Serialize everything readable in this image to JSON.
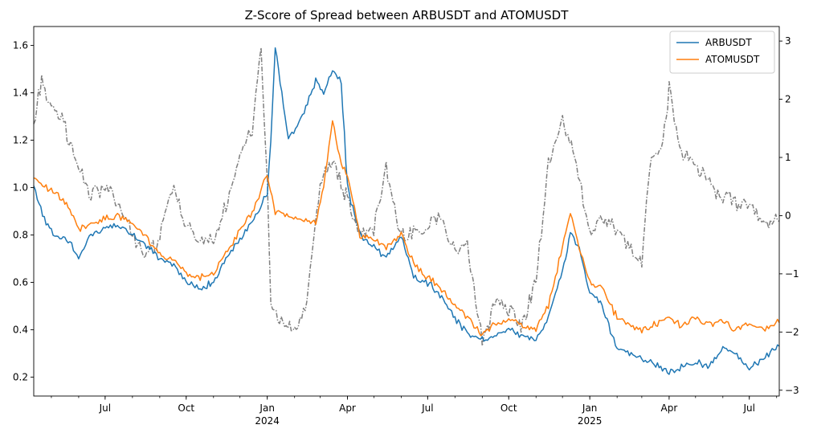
{
  "chart_data": {
    "type": "line",
    "title": "Z-Score of Spread between ARBUSDT and ATOMUSDT",
    "xlabel": "",
    "ylabel": "",
    "y2label": "",
    "x_range": [
      "2023-04-11",
      "2025-08-04"
    ],
    "ylim": [
      0.12,
      1.68
    ],
    "y2lim": [
      -3.1,
      3.25
    ],
    "grid": false,
    "legend_position": "top-right",
    "x_ticks": [
      {
        "date": "2023-07-01",
        "label": "Jul",
        "sub": ""
      },
      {
        "date": "2023-10-01",
        "label": "Oct",
        "sub": ""
      },
      {
        "date": "2024-01-01",
        "label": "Jan",
        "sub": "2024"
      },
      {
        "date": "2024-04-01",
        "label": "Apr",
        "sub": ""
      },
      {
        "date": "2024-07-01",
        "label": "Jul",
        "sub": ""
      },
      {
        "date": "2024-10-01",
        "label": "Oct",
        "sub": ""
      },
      {
        "date": "2025-01-01",
        "label": "Jan",
        "sub": "2025"
      },
      {
        "date": "2025-04-01",
        "label": "Apr",
        "sub": ""
      },
      {
        "date": "2025-07-01",
        "label": "Jul",
        "sub": ""
      }
    ],
    "y_ticks": [
      0.2,
      0.4,
      0.6,
      0.8,
      1.0,
      1.2,
      1.4,
      1.6
    ],
    "y_tick_labels": [
      "0.2",
      "0.4",
      "0.6",
      "0.8",
      "1.0",
      "1.2",
      "1.4",
      "1.6"
    ],
    "y2_ticks": [
      -3,
      -2,
      -1,
      0,
      1,
      2,
      3
    ],
    "y2_tick_labels": [
      "−3",
      "−2",
      "−1",
      "0",
      "1",
      "2",
      "3"
    ],
    "series": [
      {
        "name": "ARBUSDT",
        "color": "#1f77b4",
        "axis": "left",
        "style": "solid",
        "x": [
          "2023-04-11",
          "2023-04-25",
          "2023-05-05",
          "2023-05-20",
          "2023-06-01",
          "2023-06-15",
          "2023-07-01",
          "2023-07-15",
          "2023-08-01",
          "2023-08-15",
          "2023-09-01",
          "2023-09-15",
          "2023-10-01",
          "2023-10-15",
          "2023-11-01",
          "2023-11-15",
          "2023-12-01",
          "2023-12-15",
          "2024-01-01",
          "2024-01-05",
          "2024-01-10",
          "2024-01-25",
          "2024-02-10",
          "2024-02-25",
          "2024-03-05",
          "2024-03-15",
          "2024-03-25",
          "2024-04-01",
          "2024-04-15",
          "2024-05-01",
          "2024-05-15",
          "2024-06-01",
          "2024-06-15",
          "2024-07-01",
          "2024-07-15",
          "2024-08-01",
          "2024-08-15",
          "2024-09-01",
          "2024-09-15",
          "2024-10-01",
          "2024-10-15",
          "2024-11-01",
          "2024-11-15",
          "2024-12-01",
          "2024-12-10",
          "2024-12-20",
          "2025-01-01",
          "2025-01-15",
          "2025-02-01",
          "2025-02-15",
          "2025-03-01",
          "2025-03-15",
          "2025-04-01",
          "2025-04-15",
          "2025-05-01",
          "2025-05-15",
          "2025-06-01",
          "2025-06-15",
          "2025-07-01",
          "2025-07-15",
          "2025-08-04"
        ],
        "values": [
          1.0,
          0.85,
          0.8,
          0.78,
          0.7,
          0.8,
          0.83,
          0.85,
          0.8,
          0.76,
          0.7,
          0.68,
          0.6,
          0.57,
          0.6,
          0.7,
          0.78,
          0.85,
          0.98,
          1.2,
          1.6,
          1.2,
          1.3,
          1.45,
          1.4,
          1.5,
          1.45,
          1.0,
          0.8,
          0.75,
          0.7,
          0.8,
          0.62,
          0.6,
          0.55,
          0.45,
          0.38,
          0.36,
          0.38,
          0.4,
          0.38,
          0.36,
          0.45,
          0.65,
          0.8,
          0.75,
          0.55,
          0.5,
          0.32,
          0.3,
          0.28,
          0.26,
          0.22,
          0.24,
          0.26,
          0.25,
          0.32,
          0.3,
          0.23,
          0.28,
          0.33
        ]
      },
      {
        "name": "ATOMUSDT",
        "color": "#ff7f0e",
        "axis": "left",
        "style": "solid",
        "x": [
          "2023-04-11",
          "2023-04-25",
          "2023-05-05",
          "2023-05-20",
          "2023-06-01",
          "2023-06-15",
          "2023-07-01",
          "2023-07-15",
          "2023-08-01",
          "2023-08-15",
          "2023-09-01",
          "2023-09-15",
          "2023-10-01",
          "2023-10-15",
          "2023-11-01",
          "2023-11-15",
          "2023-12-01",
          "2023-12-15",
          "2024-01-01",
          "2024-01-10",
          "2024-01-25",
          "2024-02-10",
          "2024-02-25",
          "2024-03-05",
          "2024-03-15",
          "2024-03-25",
          "2024-04-01",
          "2024-04-15",
          "2024-05-01",
          "2024-05-15",
          "2024-06-01",
          "2024-06-15",
          "2024-07-01",
          "2024-07-15",
          "2024-08-01",
          "2024-08-15",
          "2024-09-01",
          "2024-09-15",
          "2024-10-01",
          "2024-10-15",
          "2024-11-01",
          "2024-11-15",
          "2024-12-01",
          "2024-12-10",
          "2024-12-20",
          "2025-01-01",
          "2025-01-15",
          "2025-02-01",
          "2025-02-15",
          "2025-03-01",
          "2025-03-15",
          "2025-04-01",
          "2025-04-15",
          "2025-05-01",
          "2025-05-15",
          "2025-06-01",
          "2025-06-15",
          "2025-07-01",
          "2025-07-15",
          "2025-08-04"
        ],
        "values": [
          1.05,
          1.0,
          0.98,
          0.92,
          0.82,
          0.85,
          0.87,
          0.88,
          0.85,
          0.8,
          0.72,
          0.7,
          0.64,
          0.62,
          0.64,
          0.72,
          0.82,
          0.9,
          1.05,
          0.9,
          0.88,
          0.86,
          0.85,
          1.0,
          1.28,
          1.1,
          1.05,
          0.8,
          0.78,
          0.75,
          0.8,
          0.68,
          0.62,
          0.58,
          0.5,
          0.45,
          0.38,
          0.42,
          0.45,
          0.42,
          0.4,
          0.5,
          0.75,
          0.9,
          0.75,
          0.6,
          0.58,
          0.45,
          0.42,
          0.4,
          0.42,
          0.45,
          0.42,
          0.45,
          0.42,
          0.44,
          0.4,
          0.42,
          0.4,
          0.43
        ]
      },
      {
        "name": "",
        "color": "#808080",
        "axis": "right",
        "style": "dashdot",
        "x": [
          "2023-04-11",
          "2023-04-20",
          "2023-05-01",
          "2023-05-15",
          "2023-06-01",
          "2023-06-15",
          "2023-07-01",
          "2023-07-15",
          "2023-08-01",
          "2023-08-15",
          "2023-09-01",
          "2023-09-15",
          "2023-10-01",
          "2023-10-15",
          "2023-11-01",
          "2023-11-15",
          "2023-12-01",
          "2023-12-15",
          "2023-12-25",
          "2024-01-01",
          "2024-01-05",
          "2024-01-15",
          "2024-02-01",
          "2024-02-15",
          "2024-03-01",
          "2024-03-15",
          "2024-03-25",
          "2024-04-01",
          "2024-04-15",
          "2024-05-01",
          "2024-05-15",
          "2024-06-01",
          "2024-06-15",
          "2024-07-01",
          "2024-07-15",
          "2024-08-01",
          "2024-08-15",
          "2024-09-01",
          "2024-09-15",
          "2024-10-01",
          "2024-10-15",
          "2024-11-01",
          "2024-11-15",
          "2024-12-01",
          "2024-12-15",
          "2025-01-01",
          "2025-01-15",
          "2025-02-01",
          "2025-02-15",
          "2025-03-01",
          "2025-03-10",
          "2025-03-25",
          "2025-04-01",
          "2025-04-15",
          "2025-05-01",
          "2025-05-15",
          "2025-06-01",
          "2025-06-15",
          "2025-07-01",
          "2025-07-15",
          "2025-08-04"
        ],
        "values": [
          1.5,
          2.4,
          1.8,
          1.6,
          0.8,
          0.3,
          0.5,
          0.2,
          -0.3,
          -0.7,
          -0.4,
          0.5,
          -0.2,
          -0.4,
          -0.5,
          0.2,
          1.0,
          1.5,
          2.9,
          0.5,
          -1.5,
          -1.8,
          -2.0,
          -1.5,
          0.5,
          1.0,
          0.5,
          0.3,
          -0.3,
          -0.2,
          0.8,
          -0.4,
          -0.3,
          -0.2,
          0.0,
          -0.6,
          -0.5,
          -2.2,
          -1.5,
          -1.6,
          -1.9,
          -1.2,
          0.9,
          1.6,
          1.0,
          -0.3,
          0.0,
          -0.3,
          -0.5,
          -0.8,
          0.9,
          1.2,
          2.2,
          1.0,
          0.9,
          0.6,
          0.3,
          0.2,
          0.2,
          -0.1,
          -0.1
        ]
      }
    ]
  }
}
